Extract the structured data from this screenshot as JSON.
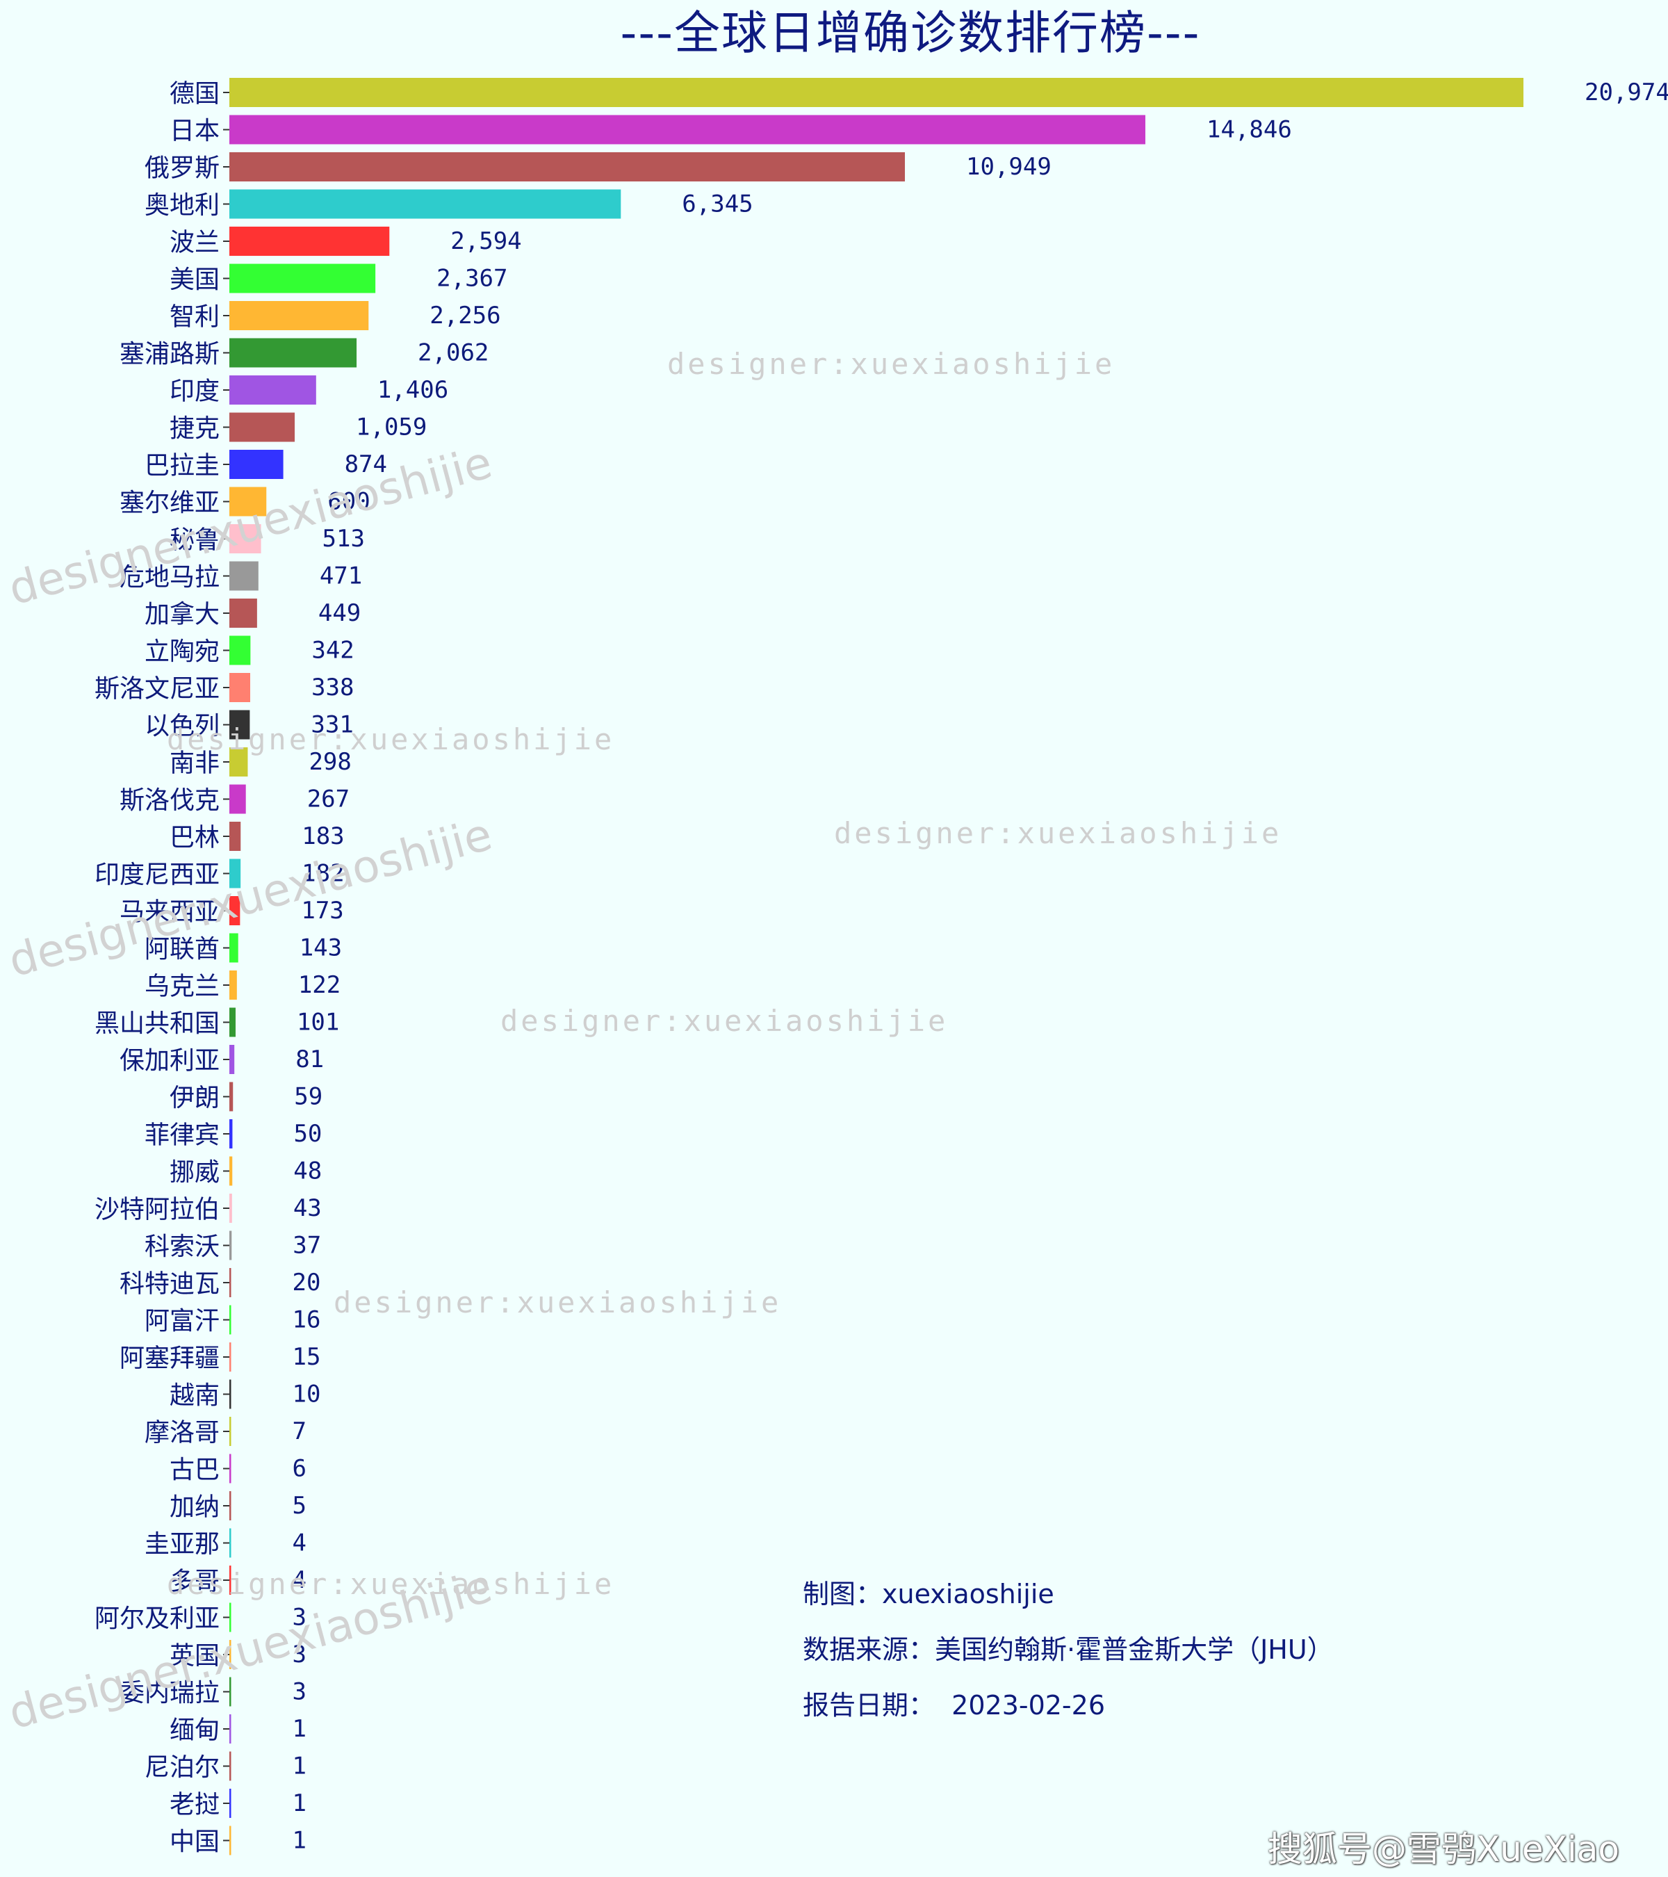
{
  "chart_data": {
    "type": "bar",
    "orientation": "horizontal",
    "title": "---全球日增确诊数排行榜---",
    "categories": [
      "德国",
      "日本",
      "俄罗斯",
      "奥地利",
      "波兰",
      "美国",
      "智利",
      "塞浦路斯",
      "印度",
      "捷克",
      "巴拉圭",
      "塞尔维亚",
      "秘鲁",
      "危地马拉",
      "加拿大",
      "立陶宛",
      "斯洛文尼亚",
      "以色列",
      "南非",
      "斯洛伐克",
      "巴林",
      "印度尼西亚",
      "马来西亚",
      "阿联酋",
      "乌克兰",
      "黑山共和国",
      "保加利亚",
      "伊朗",
      "菲律宾",
      "挪威",
      "沙特阿拉伯",
      "科索沃",
      "科特迪瓦",
      "阿富汗",
      "阿塞拜疆",
      "越南",
      "摩洛哥",
      "古巴",
      "加纳",
      "圭亚那",
      "多哥",
      "阿尔及利亚",
      "英国",
      "委内瑞拉",
      "缅甸",
      "尼泊尔",
      "老挝",
      "中国"
    ],
    "values": [
      20974,
      14846,
      10949,
      6345,
      2594,
      2367,
      2256,
      2062,
      1406,
      1059,
      874,
      600,
      513,
      471,
      449,
      342,
      338,
      331,
      298,
      267,
      183,
      182,
      173,
      143,
      122,
      101,
      81,
      59,
      50,
      48,
      43,
      37,
      20,
      16,
      15,
      10,
      7,
      6,
      5,
      4,
      4,
      3,
      3,
      3,
      1,
      1,
      1,
      1
    ],
    "value_labels": [
      "20,974",
      "14,846",
      "10,949",
      "6,345",
      "2,594",
      "2,367",
      "2,256",
      "2,062",
      "1,406",
      "1,059",
      "874",
      "600",
      "513",
      "471",
      "449",
      "342",
      "338",
      "331",
      "298",
      "267",
      "183",
      "182",
      "173",
      "143",
      "122",
      "101",
      "81",
      "59",
      "50",
      "48",
      "43",
      "37",
      "20",
      "16",
      "15",
      "10",
      "7",
      "6",
      "5",
      "4",
      "4",
      "3",
      "3",
      "3",
      "1",
      "1",
      "1",
      "1"
    ],
    "colors": [
      "#c8cc32",
      "#c93ac9",
      "#b65656",
      "#2ecccc",
      "#ff3333",
      "#33ff33",
      "#ffb733",
      "#339933",
      "#a055e3",
      "#b65656",
      "#3333ff",
      "#ffb733",
      "#ffbfcc",
      "#999999",
      "#b65656",
      "#33ff33",
      "#ff8070",
      "#333333",
      "#c8cc32",
      "#c93ac9",
      "#b65656",
      "#2ecccc",
      "#ff3333",
      "#33ff33",
      "#ffb733",
      "#339933",
      "#a055e3",
      "#b65656",
      "#3333ff",
      "#ffb733",
      "#ffbfcc",
      "#999999",
      "#b65656",
      "#33ff33",
      "#ff8070",
      "#333333",
      "#c8cc32",
      "#c93ac9",
      "#b65656",
      "#2ecccc",
      "#ff3333",
      "#33ff33",
      "#ffb733",
      "#339933",
      "#a055e3",
      "#b65656",
      "#3333ff",
      "#ffb733"
    ],
    "xlim": [
      0,
      20974
    ],
    "grid": false,
    "legend": "none"
  },
  "notes": {
    "maker": "制图：xuexiaoshijie",
    "source": "数据来源：美国约翰斯·霍普金斯大学（JHU）",
    "date": "报告日期：  2023-02-26"
  },
  "watermark": {
    "designer_text": "designer:xuexiaoshijie",
    "designer_text_rotated": "designer:xuexiaoshijie",
    "sohu": "搜狐号@雪鸮XueXiao"
  },
  "colors": {
    "background": "#f1fffe",
    "text": "#0d1a7a"
  }
}
